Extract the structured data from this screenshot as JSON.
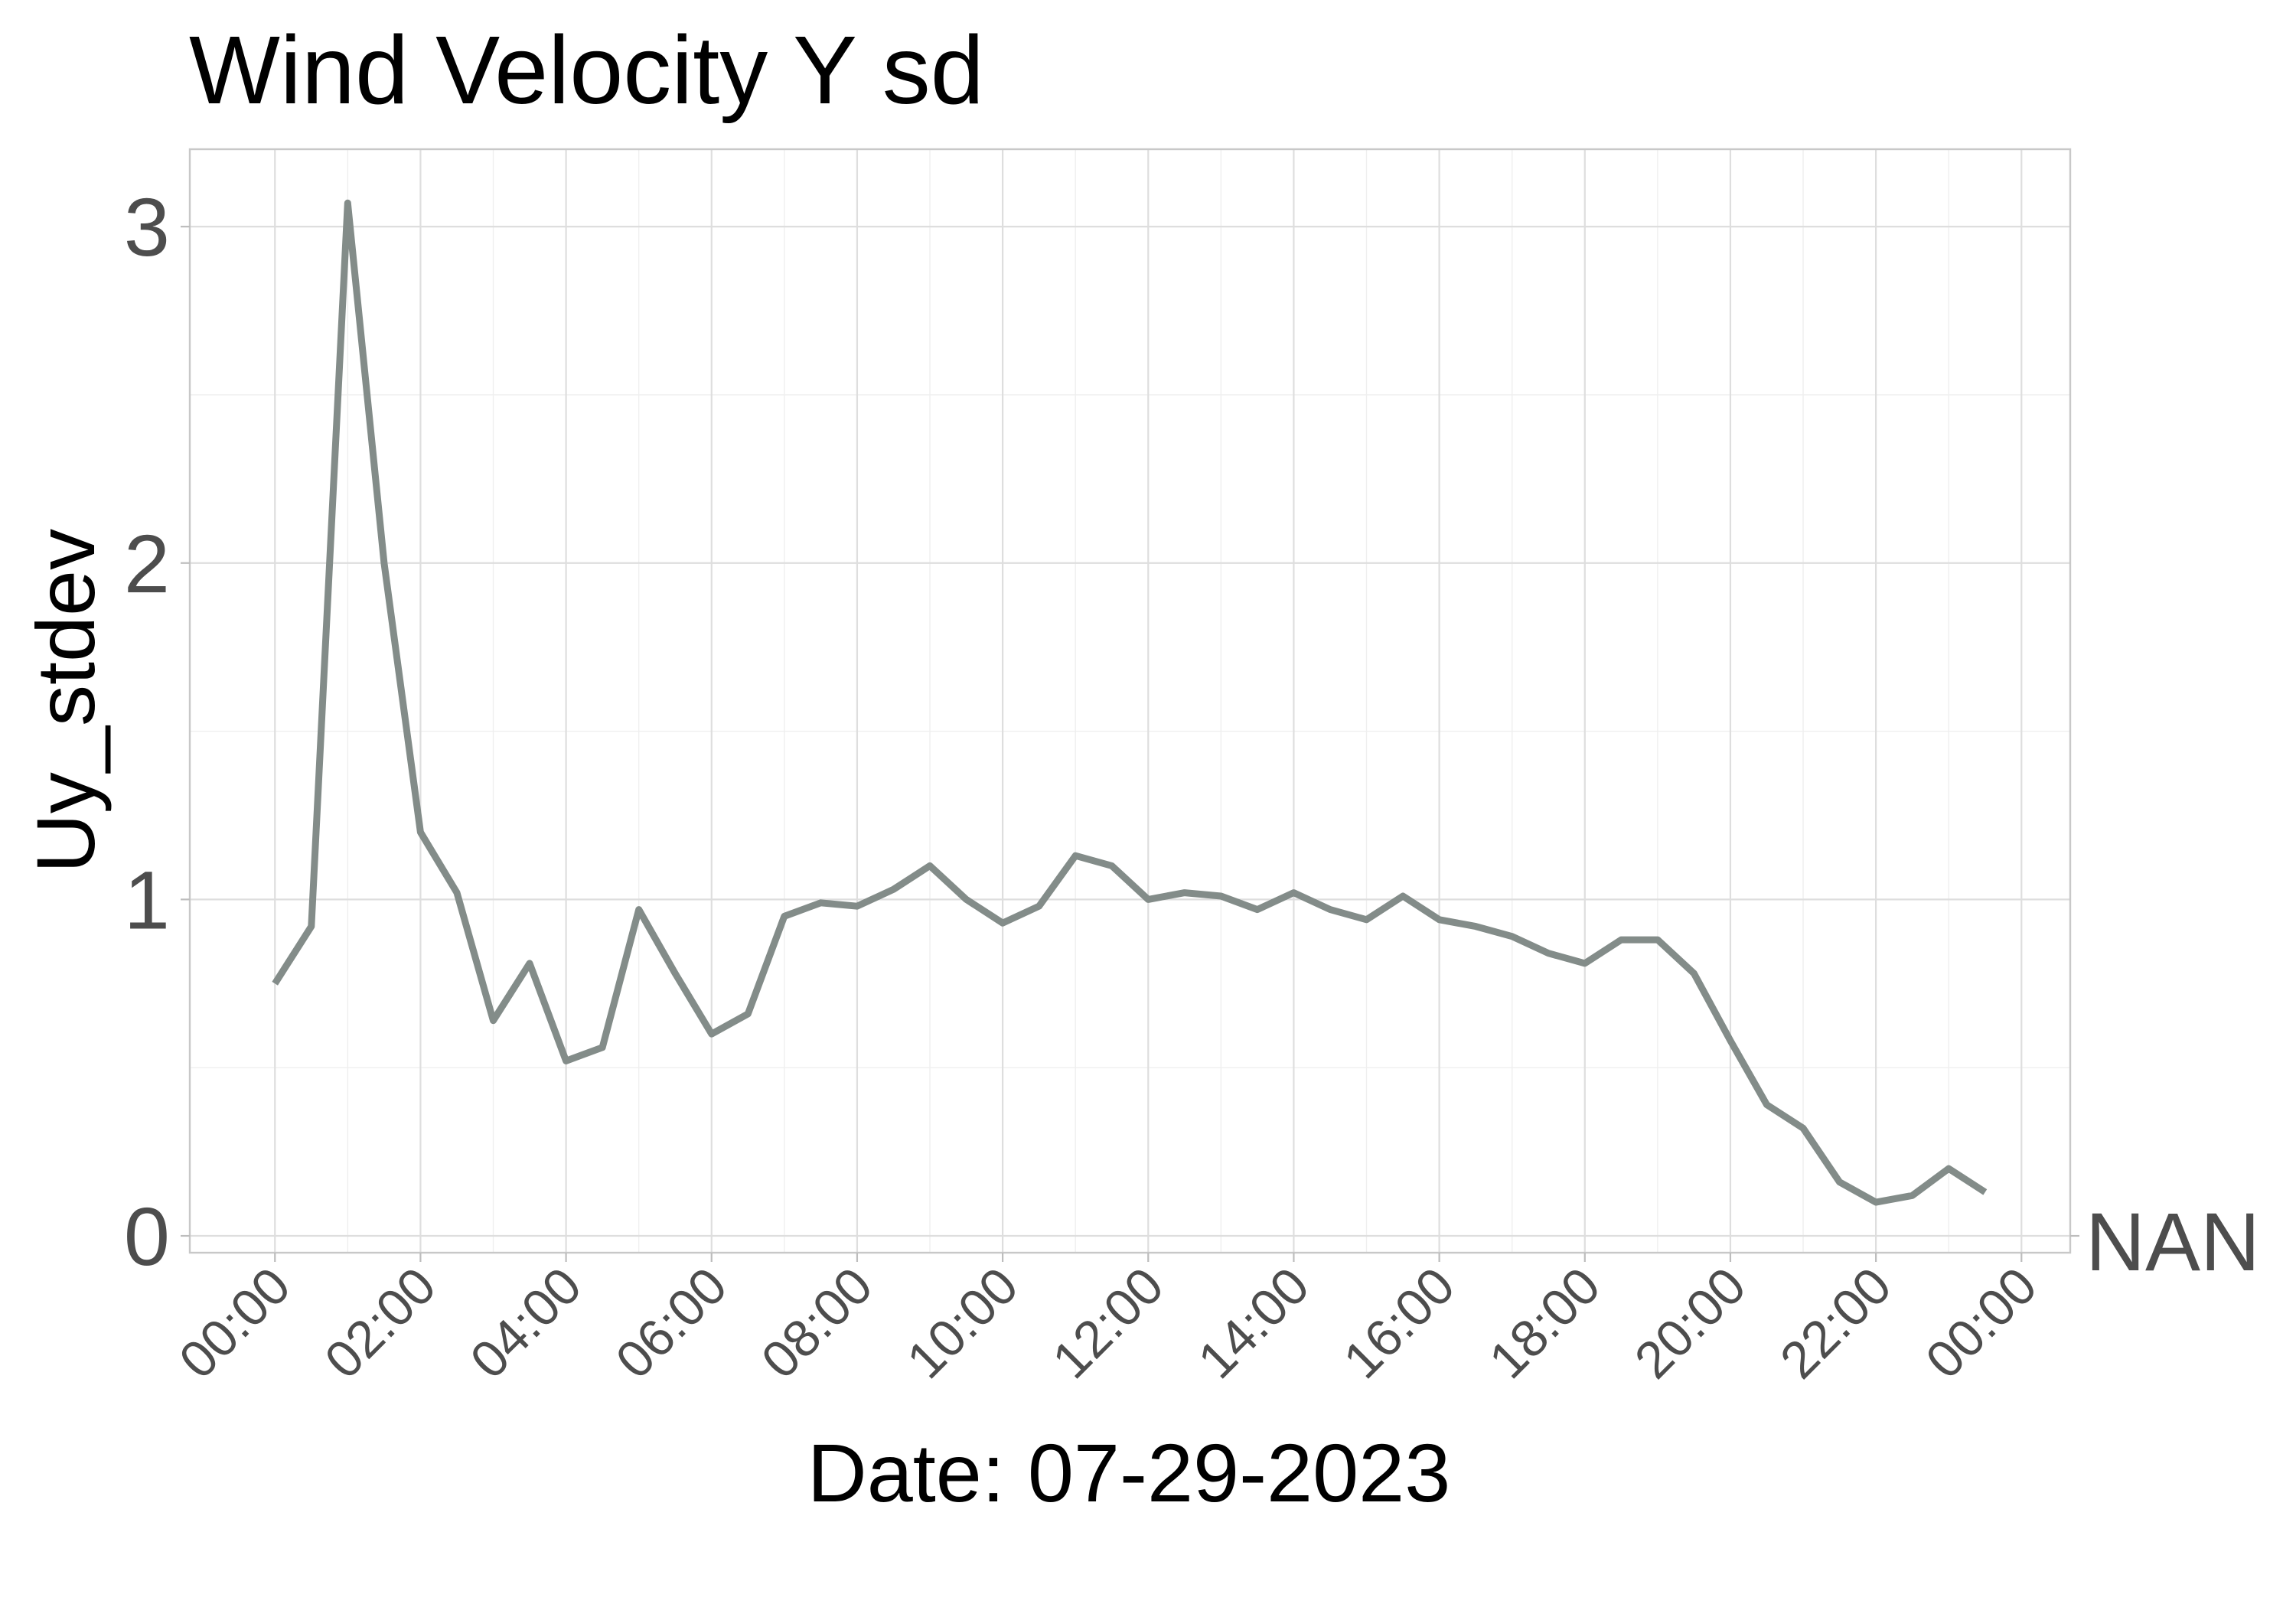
{
  "chart_data": {
    "type": "line",
    "title": "Wind Velocity Y sd",
    "xlabel": "Date: 07-29-2023",
    "ylabel": "Uy_stdev",
    "x_tick_labels": [
      "00:00",
      "02:00",
      "04:00",
      "06:00",
      "08:00",
      "10:00",
      "12:00",
      "14:00",
      "16:00",
      "18:00",
      "20:00",
      "22:00",
      "00:00"
    ],
    "y_tick_labels": [
      "0",
      "1",
      "2",
      "3"
    ],
    "y_ticks": [
      0,
      1,
      2,
      3
    ],
    "ylim": [
      -0.05,
      3.23
    ],
    "xlim_hours": [
      -1.17,
      24.67
    ],
    "na_label": "NAN",
    "grid": true,
    "series": [
      {
        "color": "#838c89",
        "x_hours": [
          0,
          0.5,
          1,
          1.5,
          2,
          2.5,
          3,
          3.5,
          4,
          4.5,
          5,
          5.5,
          6,
          6.5,
          7,
          7.5,
          8,
          8.5,
          9,
          9.5,
          10,
          10.5,
          11,
          11.5,
          12,
          12.5,
          13,
          13.5,
          14,
          14.5,
          15,
          15.5,
          16,
          16.5,
          17,
          17.5,
          18,
          18.5,
          19,
          19.5,
          20,
          20.5,
          21,
          21.5,
          22,
          22.5,
          23,
          23.5
        ],
        "values": [
          0.75,
          0.92,
          3.07,
          2.0,
          1.2,
          1.02,
          0.64,
          0.81,
          0.52,
          0.56,
          0.97,
          0.78,
          0.6,
          0.66,
          0.95,
          0.99,
          0.98,
          1.03,
          1.1,
          1.0,
          0.93,
          0.98,
          1.13,
          1.1,
          1.0,
          1.02,
          1.01,
          0.97,
          1.02,
          0.97,
          0.94,
          1.01,
          0.94,
          0.92,
          0.89,
          0.84,
          0.81,
          0.88,
          0.88,
          0.78,
          0.58,
          0.39,
          0.32,
          0.16,
          0.1,
          0.12,
          0.2,
          0.13
        ]
      }
    ]
  }
}
